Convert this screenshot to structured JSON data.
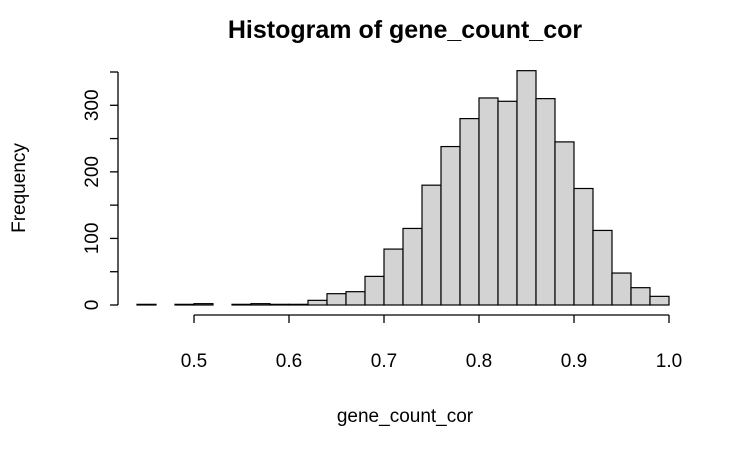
{
  "chart_data": {
    "type": "bar",
    "title": "Histogram of gene_count_cor",
    "xlabel": "gene_count_cor",
    "ylabel": "Frequency",
    "bin_edges": [
      0.44,
      0.46,
      0.48,
      0.5,
      0.52,
      0.54,
      0.56,
      0.58,
      0.6,
      0.62,
      0.64,
      0.66,
      0.68,
      0.7,
      0.72,
      0.74,
      0.76,
      0.78,
      0.8,
      0.82,
      0.84,
      0.86,
      0.88,
      0.9,
      0.92,
      0.94,
      0.96,
      0.98,
      1.0
    ],
    "values": [
      1,
      0,
      1,
      2,
      0,
      1,
      2,
      1,
      1,
      7,
      17,
      20,
      43,
      84,
      115,
      180,
      238,
      280,
      311,
      306,
      352,
      310,
      245,
      175,
      112,
      48,
      26,
      13
    ],
    "xlim": [
      0.44,
      1.0
    ],
    "ylim": [
      0,
      350
    ],
    "x_ticks": [
      0.5,
      0.6,
      0.7,
      0.8,
      0.9,
      1.0
    ],
    "x_tick_labels": [
      "0.5",
      "0.6",
      "0.7",
      "0.8",
      "0.9",
      "1.0"
    ],
    "y_ticks": [
      0,
      50,
      100,
      150,
      200,
      250,
      300,
      350
    ],
    "y_tick_labels": [
      "0",
      "",
      "100",
      "",
      "200",
      "",
      "300",
      ""
    ],
    "bar_color": "#d3d3d3",
    "edge_color": "#000000",
    "grid": false
  }
}
